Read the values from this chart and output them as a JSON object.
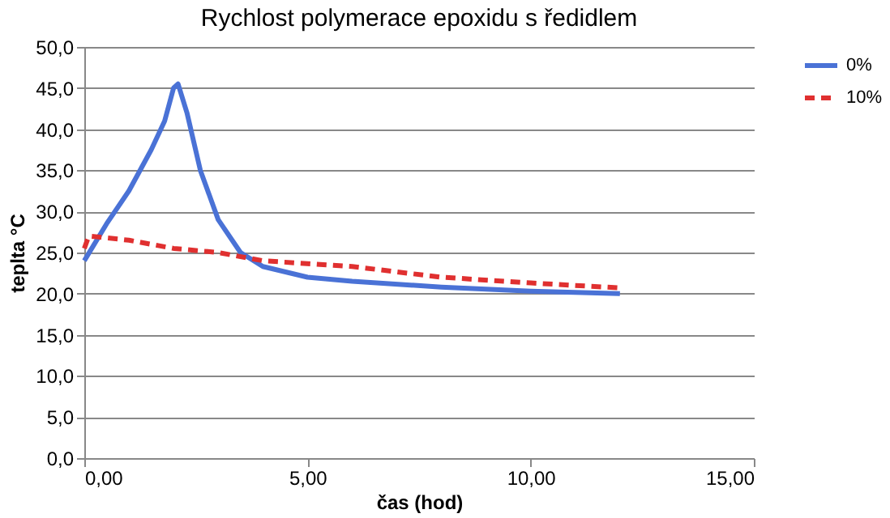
{
  "chart_data": {
    "type": "line",
    "title": "Rychlost polymerace epoxidu s ředidlem",
    "xlabel": "čas (hod)",
    "ylabel": "teplta °C",
    "xlim": [
      0,
      15
    ],
    "ylim": [
      0,
      50
    ],
    "xticks": [
      {
        "value": 0,
        "label": "0,00"
      },
      {
        "value": 5,
        "label": "5,00"
      },
      {
        "value": 10,
        "label": "10,00"
      },
      {
        "value": 15,
        "label": "15,00"
      }
    ],
    "yticks": [
      {
        "value": 0,
        "label": "0,0"
      },
      {
        "value": 5,
        "label": "5,0"
      },
      {
        "value": 10,
        "label": "10,0"
      },
      {
        "value": 15,
        "label": "15,0"
      },
      {
        "value": 20,
        "label": "20,0"
      },
      {
        "value": 25,
        "label": "25,0"
      },
      {
        "value": 30,
        "label": "30,0"
      },
      {
        "value": 35,
        "label": "35,0"
      },
      {
        "value": 40,
        "label": "40,0"
      },
      {
        "value": 45,
        "label": "45,0"
      },
      {
        "value": 50,
        "label": "50,0"
      }
    ],
    "grid": "y",
    "legend": "right",
    "series": [
      {
        "name": "0%",
        "color": "#4a72d6",
        "line_style": "solid",
        "x": [
          0,
          0.5,
          1,
          1.5,
          1.8,
          2.0,
          2.1,
          2.3,
          2.6,
          3,
          3.5,
          4,
          5,
          6,
          8,
          10,
          12
        ],
        "values": [
          24,
          28.5,
          32.5,
          37.5,
          41,
          45,
          45.5,
          42,
          35,
          29,
          25,
          23.3,
          22,
          21.5,
          20.8,
          20.3,
          20
        ]
      },
      {
        "name": "10%",
        "color": "#e03030",
        "line_style": "dashed",
        "x": [
          0,
          0.1,
          1,
          2,
          3,
          4,
          6,
          8,
          10,
          12
        ],
        "values": [
          25.5,
          27,
          26.5,
          25.5,
          25,
          24,
          23.3,
          22,
          21.3,
          20.7
        ]
      }
    ]
  }
}
